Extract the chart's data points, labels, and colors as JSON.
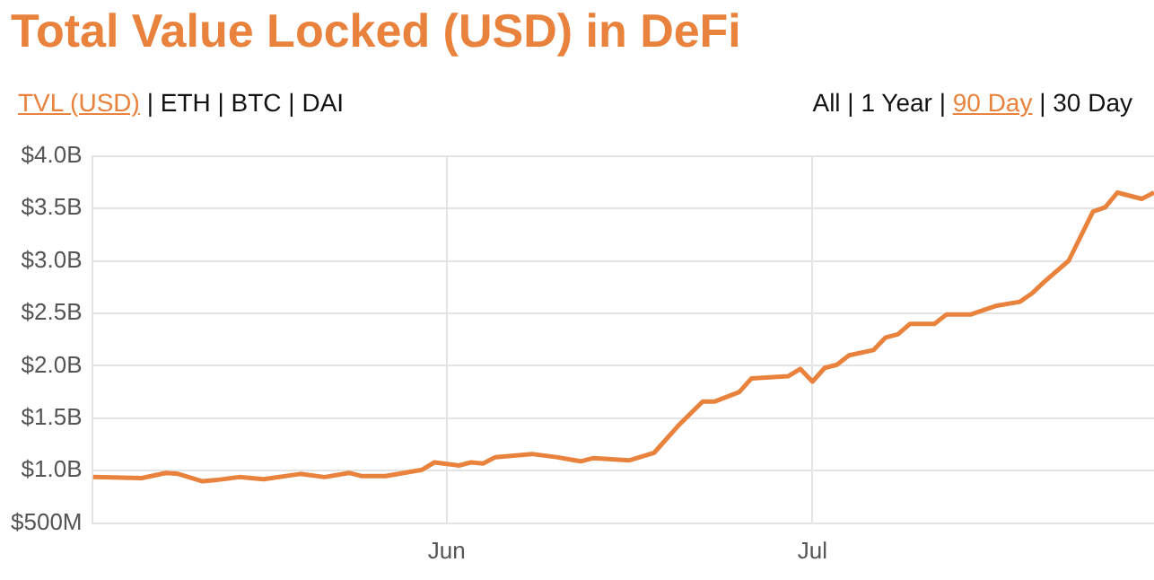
{
  "chart_data": {
    "type": "line",
    "title": "Total Value Locked (USD) in DeFi",
    "annotations": [
      "TVL (USD) | ETH | BTC | DAI",
      "All | 1 Year | 90 Day | 30 Day"
    ],
    "x": [
      "--05-03",
      "--05-07",
      "--05-09",
      "--05-10",
      "--05-12",
      "--05-13",
      "--05-15",
      "--05-17",
      "--05-20",
      "--05-22",
      "--05-24",
      "--05-25",
      "--05-27",
      "--05-30",
      "--05-31",
      "--06-02",
      "--06-03",
      "--06-04",
      "--06-05",
      "--06-08",
      "--06-10",
      "--06-11",
      "--06-12",
      "--06-13",
      "--06-16",
      "--06-18",
      "--06-20",
      "--06-22",
      "--06-23",
      "--06-25",
      "--06-26",
      "--06-29",
      "--06-30",
      "--07-01",
      "--07-02",
      "--07-03",
      "--07-04",
      "--07-06",
      "--07-07",
      "--07-08",
      "--07-09",
      "--07-11",
      "--07-12",
      "--07-14",
      "--07-16",
      "--07-18",
      "--07-19",
      "--07-20",
      "--07-22",
      "--07-24",
      "--07-25",
      "--07-26",
      "--07-28",
      "--07-29"
    ],
    "series": [
      {
        "color": "#e8823c",
        "values": [
          940000000,
          930000000,
          980000000,
          970000000,
          900000000,
          910000000,
          940000000,
          920000000,
          970000000,
          940000000,
          980000000,
          950000000,
          950000000,
          1010000000,
          1080000000,
          1050000000,
          1080000000,
          1070000000,
          1130000000,
          1160000000,
          1130000000,
          1110000000,
          1090000000,
          1120000000,
          1100000000,
          1170000000,
          1430000000,
          1660000000,
          1660000000,
          1750000000,
          1880000000,
          1900000000,
          1970000000,
          1850000000,
          1980000000,
          2010000000,
          2100000000,
          2150000000,
          2270000000,
          2300000000,
          2400000000,
          2400000000,
          2490000000,
          2490000000,
          2570000000,
          2610000000,
          2690000000,
          2800000000,
          3000000000,
          3470000000,
          3510000000,
          3650000000,
          3590000000,
          3650000000
        ]
      }
    ],
    "xlim": [
      "--05-03",
      "--07-29"
    ],
    "xticks": [
      {
        "value": "--06-01",
        "label": "Jun"
      },
      {
        "value": "--07-01",
        "label": "Jul"
      }
    ],
    "ylim": [
      500000000,
      4000000000
    ],
    "yticks": [
      {
        "value": 500000000,
        "label": "$500M"
      },
      {
        "value": 1000000000,
        "label": "$1.0B"
      },
      {
        "value": 1500000000,
        "label": "$1.5B"
      },
      {
        "value": 2000000000,
        "label": "$2.0B"
      },
      {
        "value": 2500000000,
        "label": "$2.5B"
      },
      {
        "value": 3000000000,
        "label": "$3.0B"
      },
      {
        "value": 3500000000,
        "label": "$3.5B"
      },
      {
        "value": 4000000000,
        "label": "$4.0B"
      }
    ],
    "grid": true,
    "legend": false,
    "marker": "none",
    "line_style": "solid"
  }
}
